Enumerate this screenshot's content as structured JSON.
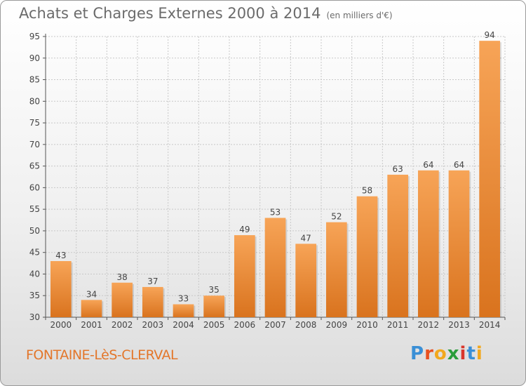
{
  "header": {
    "title": "Achats et Charges Externes 2000 à 2014",
    "unit": "(en milliers d'€)"
  },
  "footer": {
    "commune": "FONTAINE-LèS-CLERVAL",
    "logo_letters": [
      "P",
      "r",
      "o",
      "x",
      "i",
      "t",
      "i"
    ],
    "logo_colors": [
      "#3a8fd6",
      "#e8501f",
      "#f2a81d",
      "#2a9d3b",
      "#d9362b",
      "#3a8fd6",
      "#f2a81d"
    ]
  },
  "colors": {
    "bar_light": "#f7a457",
    "bar_dark": "#d9731e",
    "grid": "#c8c8c8"
  },
  "chart_data": {
    "type": "bar",
    "title": "Achats et Charges Externes 2000 à 2014",
    "subtitle": "(en milliers d'€)",
    "categories": [
      "2000",
      "2001",
      "2002",
      "2003",
      "2004",
      "2005",
      "2006",
      "2007",
      "2008",
      "2009",
      "2010",
      "2011",
      "2012",
      "2013",
      "2014"
    ],
    "values": [
      43,
      34,
      38,
      37,
      33,
      35,
      49,
      53,
      47,
      52,
      58,
      63,
      64,
      64,
      94
    ],
    "ylim": [
      30,
      95
    ],
    "yticks": [
      30,
      35,
      40,
      45,
      50,
      55,
      60,
      65,
      70,
      75,
      80,
      85,
      90,
      95
    ],
    "grid": true,
    "xlabel": "",
    "ylabel": ""
  }
}
